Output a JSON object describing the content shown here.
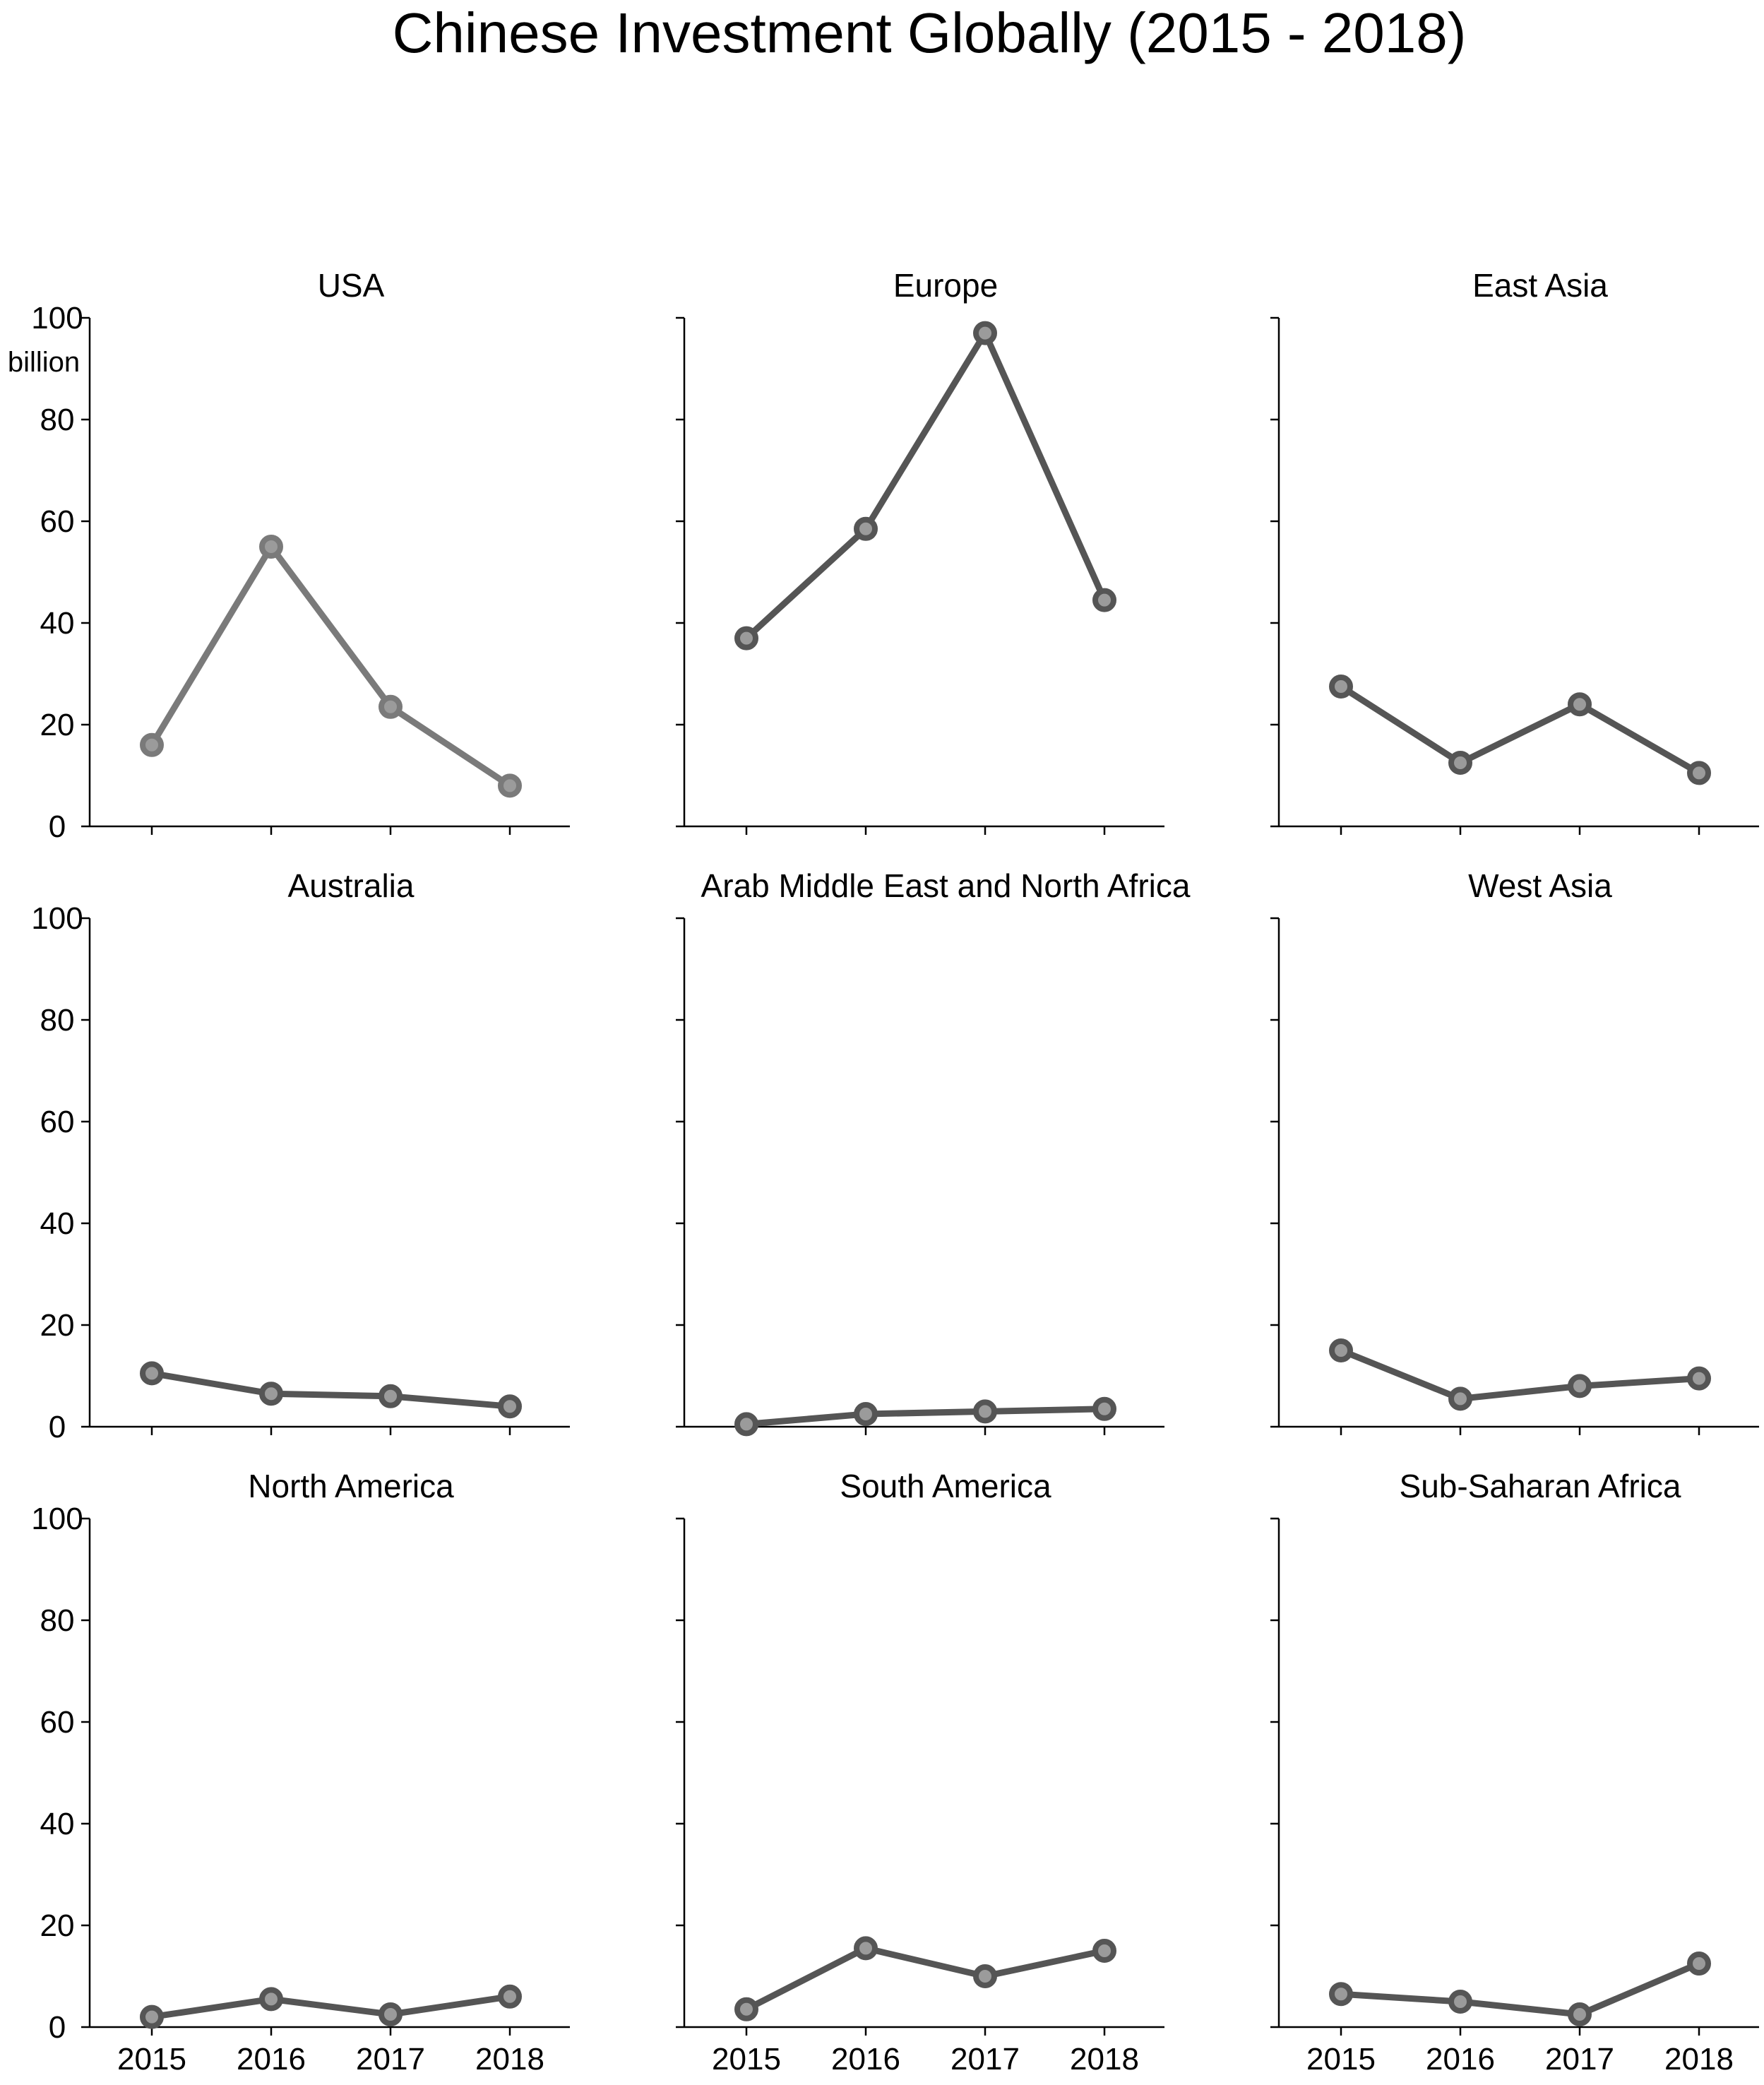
{
  "title": "Chinese Investment Globally (2015 - 2018)",
  "colors": {
    "primary": "#555555",
    "usa": "#7a7a7a",
    "marker_fill": "#9b9b9b"
  },
  "chart_data": {
    "type": "line",
    "title": "Chinese Investment Globally (2015 - 2018)",
    "layout": "3x3 small multiples",
    "x": [
      "2015",
      "2016",
      "2017",
      "2018"
    ],
    "ylim": [
      0,
      100
    ],
    "yticks": [
      0,
      20,
      40,
      60,
      80,
      100
    ],
    "ylabel": "billion",
    "grid": false,
    "panels": [
      {
        "title": "USA",
        "values": [
          16,
          55,
          23.5,
          8
        ]
      },
      {
        "title": "Europe",
        "values": [
          37,
          58.5,
          97,
          44.5
        ]
      },
      {
        "title": "East Asia",
        "values": [
          27.5,
          12.5,
          24,
          10.5
        ]
      },
      {
        "title": "Australia",
        "values": [
          10.5,
          6.5,
          6,
          4
        ]
      },
      {
        "title": "Arab Middle East and North Africa",
        "values": [
          0.5,
          2.5,
          3,
          3.5
        ]
      },
      {
        "title": "West Asia",
        "values": [
          15,
          5.5,
          8,
          9.5
        ]
      },
      {
        "title": "North America",
        "values": [
          2,
          5.5,
          2.5,
          6
        ]
      },
      {
        "title": "South America",
        "values": [
          3.5,
          15.5,
          10,
          15
        ]
      },
      {
        "title": "Sub-Saharan Africa",
        "values": [
          6.5,
          5,
          2.5,
          12.5
        ]
      }
    ]
  }
}
